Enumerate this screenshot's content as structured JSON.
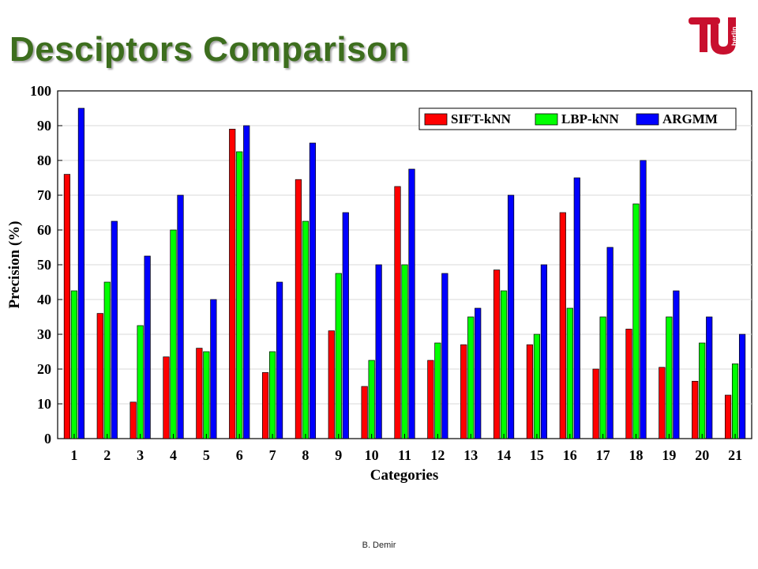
{
  "slide": {
    "title": "Desciptors Comparison",
    "footer": "B. Demir",
    "logo_text": "berlin"
  },
  "colors": {
    "title": "#3d6e1e",
    "logo": "#c8102e",
    "series": [
      "#ff0000",
      "#00ff00",
      "#0000ff"
    ]
  },
  "chart_data": {
    "type": "bar",
    "title": "",
    "xlabel": "Categories",
    "ylabel": "Precision (%)",
    "ylim": [
      0,
      100
    ],
    "yticks": [
      0,
      10,
      20,
      30,
      40,
      50,
      60,
      70,
      80,
      90,
      100
    ],
    "grid": true,
    "legend_position": "top-right",
    "categories": [
      "1",
      "2",
      "3",
      "4",
      "5",
      "6",
      "7",
      "8",
      "9",
      "10",
      "11",
      "12",
      "13",
      "14",
      "15",
      "16",
      "17",
      "18",
      "19",
      "20",
      "21"
    ],
    "series": [
      {
        "name": "SIFT-kNN",
        "color": "#ff0000",
        "values": [
          76,
          36,
          10.5,
          23.5,
          26,
          89,
          19,
          74.5,
          31,
          15,
          72.5,
          22.5,
          27,
          48.5,
          27,
          65,
          20,
          31.5,
          20.5,
          16.5,
          12.5
        ]
      },
      {
        "name": "LBP-kNN",
        "color": "#00ff00",
        "values": [
          42.5,
          45,
          32.5,
          60,
          25,
          82.5,
          25,
          62.5,
          47.5,
          22.5,
          50,
          27.5,
          35,
          42.5,
          30,
          37.5,
          35,
          67.5,
          35,
          27.5,
          21.5
        ]
      },
      {
        "name": "ARGMM",
        "color": "#0000ff",
        "values": [
          95,
          62.5,
          52.5,
          70,
          40,
          90,
          45,
          85,
          65,
          50,
          77.5,
          47.5,
          37.5,
          70,
          50,
          75,
          55,
          80,
          42.5,
          35,
          30
        ]
      }
    ]
  }
}
